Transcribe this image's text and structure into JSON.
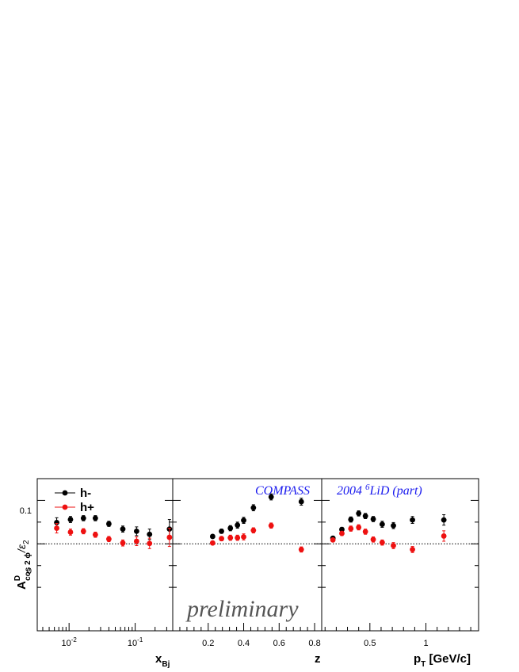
{
  "colors": {
    "h_minus": "#000000",
    "h_plus": "#ee1111",
    "banner": "#1a1aee",
    "preliminary": "#555555"
  },
  "legend": {
    "h_minus": "h-",
    "h_plus": "h+"
  },
  "banner": {
    "experiment": "COMPASS",
    "dataset_prefix": "2004 ",
    "isotope_sup": "6",
    "dataset_suffix": "LiD (part)"
  },
  "watermark": "preliminary",
  "y_axis": {
    "label_main": "A",
    "label_sup": "D",
    "label_sub": "cos 2 ϕ",
    "label_div": "/ε",
    "label_div_sub": "2",
    "ticks": [
      {
        "value": 0,
        "label": "0"
      },
      {
        "value": 0.1,
        "label": "0.1"
      }
    ],
    "minor_ticks": [
      -0.1,
      -0.05,
      0.05
    ],
    "ylim": [
      -0.2,
      0.15
    ]
  },
  "chart_data": [
    {
      "type": "scatter",
      "x_scale": "log",
      "xlim": [
        0.0033,
        0.37
      ],
      "xlabel_main": "x",
      "xlabel_sub": "Bj",
      "x_ticks": [
        {
          "value": 0.01,
          "base": "10",
          "exp": "-2"
        },
        {
          "value": 0.1,
          "base": "10",
          "exp": "-1"
        }
      ],
      "series": [
        {
          "name": "h-",
          "points": [
            {
              "x": 0.0065,
              "y": 0.049,
              "err": 0.011
            },
            {
              "x": 0.0105,
              "y": 0.056,
              "err": 0.007
            },
            {
              "x": 0.0165,
              "y": 0.059,
              "err": 0.006
            },
            {
              "x": 0.025,
              "y": 0.059,
              "err": 0.006
            },
            {
              "x": 0.04,
              "y": 0.046,
              "err": 0.006
            },
            {
              "x": 0.065,
              "y": 0.034,
              "err": 0.007
            },
            {
              "x": 0.105,
              "y": 0.029,
              "err": 0.01
            },
            {
              "x": 0.165,
              "y": 0.022,
              "err": 0.012
            },
            {
              "x": 0.33,
              "y": 0.034,
              "err": 0.022
            }
          ]
        },
        {
          "name": "h+",
          "points": [
            {
              "x": 0.0065,
              "y": 0.036,
              "err": 0.011
            },
            {
              "x": 0.0105,
              "y": 0.027,
              "err": 0.007
            },
            {
              "x": 0.0165,
              "y": 0.029,
              "err": 0.006
            },
            {
              "x": 0.025,
              "y": 0.021,
              "err": 0.006
            },
            {
              "x": 0.04,
              "y": 0.011,
              "err": 0.006
            },
            {
              "x": 0.065,
              "y": 0.002,
              "err": 0.007
            },
            {
              "x": 0.105,
              "y": 0.006,
              "err": 0.01
            },
            {
              "x": 0.165,
              "y": 0.001,
              "err": 0.012
            },
            {
              "x": 0.33,
              "y": 0.015,
              "err": 0.021
            }
          ]
        }
      ]
    },
    {
      "type": "scatter",
      "x_scale": "linear",
      "xlim": [
        0.0,
        0.84
      ],
      "xlabel_main": "z",
      "x_ticks": [
        {
          "value": 0.2,
          "label": "0.2"
        },
        {
          "value": 0.4,
          "label": "0.4"
        },
        {
          "value": 0.6,
          "label": "0.6"
        },
        {
          "value": 0.8,
          "label": "0.8"
        }
      ],
      "series": [
        {
          "name": "h-",
          "points": [
            {
              "x": 0.225,
              "y": 0.017,
              "err": 0.004
            },
            {
              "x": 0.275,
              "y": 0.029,
              "err": 0.005
            },
            {
              "x": 0.325,
              "y": 0.036,
              "err": 0.006
            },
            {
              "x": 0.365,
              "y": 0.043,
              "err": 0.007
            },
            {
              "x": 0.4,
              "y": 0.054,
              "err": 0.007
            },
            {
              "x": 0.455,
              "y": 0.083,
              "err": 0.007
            },
            {
              "x": 0.555,
              "y": 0.108,
              "err": 0.007
            },
            {
              "x": 0.725,
              "y": 0.097,
              "err": 0.008
            }
          ]
        },
        {
          "name": "h+",
          "points": [
            {
              "x": 0.225,
              "y": 0.002,
              "err": 0.004
            },
            {
              "x": 0.275,
              "y": 0.012,
              "err": 0.005
            },
            {
              "x": 0.325,
              "y": 0.014,
              "err": 0.006
            },
            {
              "x": 0.365,
              "y": 0.014,
              "err": 0.006
            },
            {
              "x": 0.4,
              "y": 0.016,
              "err": 0.007
            },
            {
              "x": 0.455,
              "y": 0.031,
              "err": 0.006
            },
            {
              "x": 0.555,
              "y": 0.042,
              "err": 0.006
            },
            {
              "x": 0.725,
              "y": -0.013,
              "err": 0.006
            }
          ]
        }
      ]
    },
    {
      "type": "scatter",
      "x_scale": "linear",
      "xlim": [
        0.07,
        1.47
      ],
      "xlabel_main": "p",
      "xlabel_sub": "T",
      "xlabel_suffix": " [GeV/c]",
      "x_ticks": [
        {
          "value": 0.5,
          "label": "0.5"
        },
        {
          "value": 1,
          "label": "1"
        }
      ],
      "series": [
        {
          "name": "h-",
          "points": [
            {
              "x": 0.17,
              "y": 0.013,
              "err": 0.004
            },
            {
              "x": 0.25,
              "y": 0.033,
              "err": 0.005
            },
            {
              "x": 0.33,
              "y": 0.056,
              "err": 0.006
            },
            {
              "x": 0.4,
              "y": 0.07,
              "err": 0.006
            },
            {
              "x": 0.46,
              "y": 0.064,
              "err": 0.006
            },
            {
              "x": 0.53,
              "y": 0.057,
              "err": 0.006
            },
            {
              "x": 0.61,
              "y": 0.045,
              "err": 0.007
            },
            {
              "x": 0.71,
              "y": 0.042,
              "err": 0.007
            },
            {
              "x": 0.88,
              "y": 0.055,
              "err": 0.008
            },
            {
              "x": 1.16,
              "y": 0.055,
              "err": 0.012
            }
          ]
        },
        {
          "name": "h+",
          "points": [
            {
              "x": 0.17,
              "y": 0.009,
              "err": 0.004
            },
            {
              "x": 0.25,
              "y": 0.024,
              "err": 0.005
            },
            {
              "x": 0.33,
              "y": 0.035,
              "err": 0.006
            },
            {
              "x": 0.4,
              "y": 0.038,
              "err": 0.006
            },
            {
              "x": 0.46,
              "y": 0.028,
              "err": 0.006
            },
            {
              "x": 0.53,
              "y": 0.01,
              "err": 0.006
            },
            {
              "x": 0.61,
              "y": 0.003,
              "err": 0.006
            },
            {
              "x": 0.71,
              "y": -0.004,
              "err": 0.007
            },
            {
              "x": 0.88,
              "y": -0.013,
              "err": 0.007
            },
            {
              "x": 1.16,
              "y": 0.018,
              "err": 0.012
            }
          ]
        }
      ]
    }
  ]
}
